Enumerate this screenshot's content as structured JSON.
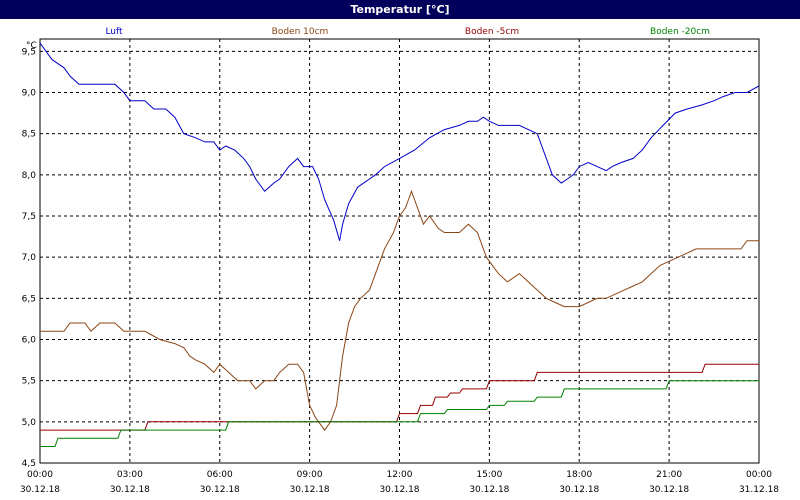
{
  "window": {
    "title": "Temperatur [°C]"
  },
  "chart_data": {
    "type": "line",
    "title": "Temperatur [°C]",
    "ylabel": "°C",
    "xlabel": "",
    "ylim": [
      4.5,
      9.65
    ],
    "xlim": [
      0,
      24
    ],
    "grid": true,
    "legend_placement": "top",
    "y_ticks": [
      "4,5",
      "5,0",
      "5,5",
      "6,0",
      "6,5",
      "7,0",
      "7,5",
      "8,0",
      "8,5",
      "9,0",
      "9,5"
    ],
    "y_tick_values": [
      4.5,
      5.0,
      5.5,
      6.0,
      6.5,
      7.0,
      7.5,
      8.0,
      8.5,
      9.0,
      9.5
    ],
    "x_ticks": [
      {
        "time": "00:00",
        "date": "30.12.18",
        "hour": 0
      },
      {
        "time": "03:00",
        "date": "30.12.18",
        "hour": 3
      },
      {
        "time": "06:00",
        "date": "30.12.18",
        "hour": 6
      },
      {
        "time": "09:00",
        "date": "30.12.18",
        "hour": 9
      },
      {
        "time": "12:00",
        "date": "30.12.18",
        "hour": 12
      },
      {
        "time": "15:00",
        "date": "30.12.18",
        "hour": 15
      },
      {
        "time": "18:00",
        "date": "30.12.18",
        "hour": 18
      },
      {
        "time": "21:00",
        "date": "30.12.18",
        "hour": 21
      },
      {
        "time": "00:00",
        "date": "31.12.18",
        "hour": 24
      }
    ],
    "series": [
      {
        "name": "Luft",
        "color": "#0000c8",
        "x": [
          0,
          0.2,
          0.4,
          0.6,
          0.8,
          1.0,
          1.3,
          1.5,
          1.7,
          2.0,
          2.5,
          2.8,
          3.0,
          3.2,
          3.5,
          3.8,
          4.2,
          4.5,
          4.8,
          5.2,
          5.5,
          5.8,
          6.0,
          6.2,
          6.5,
          6.8,
          7.0,
          7.2,
          7.5,
          7.8,
          8.0,
          8.3,
          8.6,
          8.8,
          9.1,
          9.3,
          9.5,
          9.8,
          10.0,
          10.1,
          10.3,
          10.6,
          10.8,
          11.0,
          11.2,
          11.5,
          12.0,
          12.5,
          13.0,
          13.5,
          14.0,
          14.3,
          14.6,
          14.8,
          15.0,
          15.3,
          15.6,
          16.0,
          16.6,
          16.9,
          17.1,
          17.4,
          17.6,
          17.8,
          18.0,
          18.3,
          18.6,
          18.9,
          19.1,
          19.4,
          19.8,
          20.1,
          20.4,
          20.8,
          21.2,
          21.6,
          22.1,
          22.5,
          22.8,
          23.2,
          23.6,
          24.0
        ],
        "y": [
          9.6,
          9.5,
          9.4,
          9.35,
          9.3,
          9.2,
          9.1,
          9.1,
          9.1,
          9.1,
          9.1,
          9.0,
          8.9,
          8.9,
          8.9,
          8.8,
          8.8,
          8.7,
          8.5,
          8.45,
          8.4,
          8.4,
          8.3,
          8.35,
          8.3,
          8.2,
          8.1,
          7.95,
          7.8,
          7.9,
          7.95,
          8.1,
          8.2,
          8.1,
          8.1,
          7.95,
          7.7,
          7.45,
          7.2,
          7.4,
          7.65,
          7.85,
          7.9,
          7.95,
          8.0,
          8.1,
          8.2,
          8.3,
          8.45,
          8.55,
          8.6,
          8.65,
          8.65,
          8.7,
          8.65,
          8.6,
          8.6,
          8.6,
          8.5,
          8.2,
          8.0,
          7.9,
          7.95,
          8.0,
          8.1,
          8.15,
          8.1,
          8.05,
          8.1,
          8.15,
          8.2,
          8.3,
          8.45,
          8.6,
          8.75,
          8.8,
          8.85,
          8.9,
          8.95,
          9.0,
          9.0,
          9.08
        ]
      },
      {
        "name": "Boden 10cm",
        "color": "#8c4614",
        "x": [
          0,
          0.5,
          0.8,
          1.0,
          1.3,
          1.5,
          1.7,
          2.0,
          2.5,
          2.8,
          3.0,
          3.5,
          4.0,
          4.5,
          4.8,
          5.0,
          5.2,
          5.5,
          5.8,
          6.0,
          6.3,
          6.6,
          7.0,
          7.2,
          7.5,
          7.8,
          8.0,
          8.3,
          8.6,
          8.8,
          9.0,
          9.2,
          9.5,
          9.7,
          9.9,
          10.1,
          10.3,
          10.5,
          10.7,
          11.0,
          11.3,
          11.5,
          11.8,
          12.0,
          12.2,
          12.4,
          12.6,
          12.8,
          13.0,
          13.3,
          13.5,
          13.8,
          14.0,
          14.3,
          14.6,
          14.9,
          15.1,
          15.3,
          15.6,
          15.8,
          16.0,
          16.3,
          16.6,
          16.9,
          17.2,
          17.5,
          17.8,
          18.0,
          18.3,
          18.6,
          18.9,
          19.2,
          19.5,
          19.8,
          20.1,
          20.4,
          20.7,
          21.0,
          21.3,
          21.6,
          21.9,
          22.2,
          22.5,
          22.8,
          23.1,
          23.4,
          23.6,
          24.0
        ],
        "y": [
          6.1,
          6.1,
          6.1,
          6.2,
          6.2,
          6.2,
          6.1,
          6.2,
          6.2,
          6.1,
          6.1,
          6.1,
          6.0,
          5.95,
          5.9,
          5.8,
          5.75,
          5.7,
          5.6,
          5.7,
          5.6,
          5.5,
          5.5,
          5.4,
          5.5,
          5.5,
          5.6,
          5.7,
          5.7,
          5.6,
          5.2,
          5.05,
          4.9,
          5.0,
          5.2,
          5.8,
          6.2,
          6.4,
          6.5,
          6.6,
          6.9,
          7.1,
          7.3,
          7.5,
          7.6,
          7.8,
          7.6,
          7.4,
          7.5,
          7.35,
          7.3,
          7.3,
          7.3,
          7.4,
          7.3,
          7.0,
          6.9,
          6.8,
          6.7,
          6.75,
          6.8,
          6.7,
          6.6,
          6.5,
          6.45,
          6.4,
          6.4,
          6.4,
          6.45,
          6.5,
          6.5,
          6.55,
          6.6,
          6.65,
          6.7,
          6.8,
          6.9,
          6.95,
          7.0,
          7.05,
          7.1,
          7.1,
          7.1,
          7.1,
          7.1,
          7.1,
          7.2,
          7.2
        ]
      },
      {
        "name": "Boden -5cm",
        "color": "#960000",
        "x": [
          0,
          3.5,
          3.6,
          11.9,
          12.0,
          12.6,
          12.7,
          13.1,
          13.2,
          13.6,
          13.7,
          14.0,
          14.1,
          14.9,
          15.0,
          16.5,
          16.6,
          22.1,
          22.2,
          24.0
        ],
        "y": [
          4.9,
          4.9,
          5.0,
          5.0,
          5.1,
          5.1,
          5.2,
          5.2,
          5.3,
          5.3,
          5.35,
          5.35,
          5.4,
          5.4,
          5.5,
          5.5,
          5.6,
          5.6,
          5.7,
          5.7
        ]
      },
      {
        "name": "Boden -20cm",
        "color": "#008200",
        "x": [
          0,
          0.5,
          0.6,
          2.6,
          2.7,
          6.2,
          6.3,
          12.6,
          12.7,
          13.5,
          13.6,
          14.9,
          15.0,
          15.5,
          15.6,
          16.5,
          16.6,
          17.4,
          17.5,
          20.9,
          21.0,
          24.0
        ],
        "y": [
          4.7,
          4.7,
          4.8,
          4.8,
          4.9,
          4.9,
          5.0,
          5.0,
          5.1,
          5.1,
          5.15,
          5.15,
          5.2,
          5.2,
          5.25,
          5.25,
          5.3,
          5.3,
          5.4,
          5.4,
          5.5,
          5.5
        ]
      }
    ]
  }
}
